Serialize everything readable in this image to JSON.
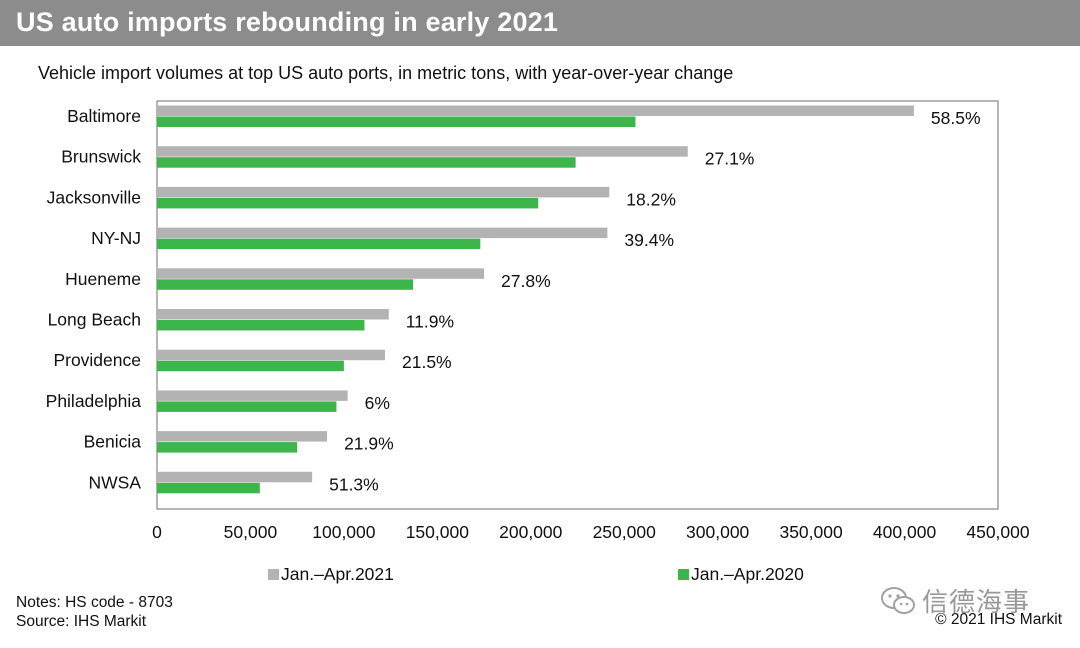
{
  "header": {
    "title": "US auto imports rebounding in early 2021",
    "subtitle": "Vehicle import volumes at top US auto ports, in metric tons, with year-over-year change"
  },
  "footer": {
    "notes": "Notes: HS code - 8703",
    "source": "Source: IHS Markit",
    "copyright": "© 2021 IHS Markit",
    "watermark_text": "信德海事",
    "watermark_icon": "wechat-icon"
  },
  "colors": {
    "title_bar": "#8c8c8c",
    "series_2021": "#b3b3b3",
    "series_2020": "#3cb54a"
  },
  "chart_data": {
    "type": "bar",
    "orientation": "horizontal",
    "categories": [
      "Baltimore",
      "Brunswick",
      "Jacksonville",
      "NY-NJ",
      "Hueneme",
      "Long Beach",
      "Providence",
      "Philadelphia",
      "Benicia",
      "NWSA"
    ],
    "series": [
      {
        "name": "Jan.–Apr.2021",
        "values": [
          405000,
          284000,
          242000,
          241000,
          175000,
          124000,
          122000,
          102000,
          91000,
          83000
        ]
      },
      {
        "name": "Jan.–Apr.2020",
        "values": [
          256000,
          224000,
          204000,
          173000,
          137000,
          111000,
          100000,
          96000,
          75000,
          55000
        ]
      }
    ],
    "annotations": [
      "58.5%",
      "27.1%",
      "18.2%",
      "39.4%",
      "27.8%",
      "11.9%",
      "21.5%",
      "6%",
      "21.9%",
      "51.3%"
    ],
    "x_ticks": [
      "0",
      "50,000",
      "100,000",
      "150,000",
      "200,000",
      "250,000",
      "300,000",
      "350,000",
      "400,000",
      "450,000"
    ],
    "xlim": [
      0,
      450000
    ],
    "grid": false,
    "legend_position": "bottom"
  }
}
